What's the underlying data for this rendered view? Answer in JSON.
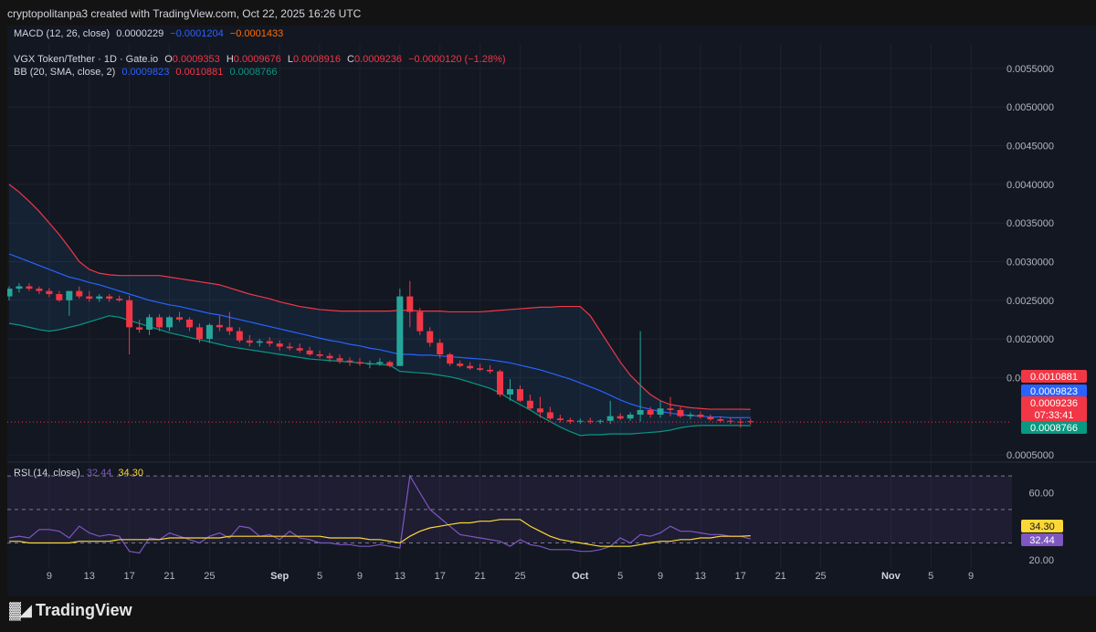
{
  "header": {
    "created_by": "cryptopolitanpa3 created with TradingView.com, Oct 22, 2025 16:26 UTC"
  },
  "macd_legend": {
    "label": "MACD (12, 26, close)",
    "v1": "0.0000229",
    "v2": "−0.0001204",
    "v3": "−0.0001433"
  },
  "symbol_legend": {
    "name": "VGX Token/Tether · 1D · Gate.io",
    "o_label": "O",
    "o": "0.0009353",
    "h_label": "H",
    "h": "0.0009676",
    "l_label": "L",
    "l": "0.0008916",
    "c_label": "C",
    "c": "0.0009236",
    "change": "−0.0000120 (−1.28%)"
  },
  "bb_legend": {
    "label": "BB (20, SMA, close, 2)",
    "basis": "0.0009823",
    "upper": "0.0010881",
    "lower": "0.0008766"
  },
  "rsi_legend": {
    "label": "RSI (14, close)",
    "rsi": "32.44",
    "ma": "34.30"
  },
  "price_tags": {
    "upper": "0.0010881",
    "basis": "0.0009823",
    "last": "0.0009236",
    "countdown": "07:33:41",
    "lower": "0.0008766"
  },
  "rsi_tags": {
    "ma": "34.30",
    "rsi": "32.44"
  },
  "footer": {
    "brand": "TradingView"
  },
  "colors": {
    "up": "#26a69a",
    "down": "#f23645",
    "bb_basis": "#2962ff",
    "bb_upper": "#f23645",
    "bb_lower": "#089981",
    "rsi": "#7e57c2",
    "rsi_ma": "#fdd835",
    "macd": "#2962ff",
    "signal": "#ff6d00"
  },
  "chart_data": [
    {
      "type": "candlestick",
      "title": "VGX Token/Tether · 1D · Gate.io",
      "y_axis_labels": [
        "0.0055000",
        "0.0050000",
        "0.0045000",
        "0.0040000",
        "0.0035000",
        "0.0030000",
        "0.0025000",
        "0.0020000",
        "0.0015000",
        "0.0005000"
      ],
      "y_axis_values": [
        0.0055,
        0.005,
        0.0045,
        0.004,
        0.0035,
        0.003,
        0.0025,
        0.002,
        0.0015,
        0.0005
      ],
      "ylim": [
        0.0005,
        0.0057
      ],
      "x_tick_labels": [
        "9",
        "13",
        "17",
        "21",
        "25",
        "Sep",
        "5",
        "9",
        "13",
        "17",
        "21",
        "25",
        "Oct",
        "5",
        "9",
        "13",
        "17",
        "21",
        "25",
        "Nov",
        "5",
        "9"
      ],
      "x_tick_dates": [
        "2025-08-09",
        "2025-08-13",
        "2025-08-17",
        "2025-08-21",
        "2025-08-25",
        "2025-09-01",
        "2025-09-05",
        "2025-09-09",
        "2025-09-13",
        "2025-09-17",
        "2025-09-21",
        "2025-09-25",
        "2025-10-01",
        "2025-10-05",
        "2025-10-09",
        "2025-10-13",
        "2025-10-17",
        "2025-10-21",
        "2025-10-25",
        "2025-11-01",
        "2025-11-05",
        "2025-11-09"
      ],
      "start_date": "2025-08-05",
      "candles": [
        [
          0.00255,
          0.00268,
          0.0025,
          0.00265
        ],
        [
          0.00265,
          0.00272,
          0.0026,
          0.00268
        ],
        [
          0.00268,
          0.00272,
          0.00262,
          0.00265
        ],
        [
          0.00265,
          0.00268,
          0.00258,
          0.00262
        ],
        [
          0.00262,
          0.00266,
          0.00254,
          0.00258
        ],
        [
          0.00258,
          0.00262,
          0.00248,
          0.0025
        ],
        [
          0.0025,
          0.0026,
          0.0023,
          0.00262
        ],
        [
          0.00262,
          0.00268,
          0.00252,
          0.00255
        ],
        [
          0.00255,
          0.00262,
          0.00248,
          0.00252
        ],
        [
          0.00252,
          0.00258,
          0.00248,
          0.00255
        ],
        [
          0.00255,
          0.00258,
          0.00248,
          0.00252
        ],
        [
          0.00252,
          0.00256,
          0.00248,
          0.0025
        ],
        [
          0.0025,
          0.00256,
          0.0018,
          0.00215
        ],
        [
          0.00215,
          0.00225,
          0.00208,
          0.00212
        ],
        [
          0.00212,
          0.00232,
          0.00205,
          0.00228
        ],
        [
          0.00228,
          0.00232,
          0.0021,
          0.00215
        ],
        [
          0.00215,
          0.0023,
          0.0021,
          0.00228
        ],
        [
          0.00228,
          0.00235,
          0.00222,
          0.00225
        ],
        [
          0.00225,
          0.00228,
          0.0021,
          0.00215
        ],
        [
          0.00215,
          0.0022,
          0.00195,
          0.002
        ],
        [
          0.002,
          0.0022,
          0.00195,
          0.00218
        ],
        [
          0.00218,
          0.0023,
          0.0021,
          0.00215
        ],
        [
          0.00215,
          0.00235,
          0.00205,
          0.0021
        ],
        [
          0.0021,
          0.00215,
          0.00195,
          0.00198
        ],
        [
          0.00198,
          0.00205,
          0.0019,
          0.00195
        ],
        [
          0.00195,
          0.002,
          0.0019,
          0.00197
        ],
        [
          0.00197,
          0.00202,
          0.0019,
          0.00194
        ],
        [
          0.00194,
          0.00198,
          0.00185,
          0.0019
        ],
        [
          0.0019,
          0.00195,
          0.00185,
          0.00188
        ],
        [
          0.00188,
          0.00194,
          0.00182,
          0.00185
        ],
        [
          0.00185,
          0.0019,
          0.00178,
          0.0018
        ],
        [
          0.0018,
          0.00185,
          0.00175,
          0.00178
        ],
        [
          0.00178,
          0.00182,
          0.0017,
          0.00175
        ],
        [
          0.00175,
          0.0018,
          0.00168,
          0.00172
        ],
        [
          0.00172,
          0.00176,
          0.00165,
          0.0017
        ],
        [
          0.0017,
          0.00175,
          0.00165,
          0.00168
        ],
        [
          0.00168,
          0.00172,
          0.00162,
          0.00168
        ],
        [
          0.00168,
          0.00175,
          0.00165,
          0.0017
        ],
        [
          0.0017,
          0.00172,
          0.00163,
          0.00165
        ],
        [
          0.00165,
          0.00265,
          0.00165,
          0.00255
        ],
        [
          0.00255,
          0.00275,
          0.00215,
          0.00235
        ],
        [
          0.00235,
          0.0024,
          0.00205,
          0.0021
        ],
        [
          0.0021,
          0.00215,
          0.0019,
          0.00195
        ],
        [
          0.00195,
          0.002,
          0.00175,
          0.0018
        ],
        [
          0.0018,
          0.00182,
          0.00165,
          0.00168
        ],
        [
          0.00168,
          0.00172,
          0.00163,
          0.00165
        ],
        [
          0.00165,
          0.0017,
          0.0016,
          0.00162
        ],
        [
          0.00162,
          0.00168,
          0.00158,
          0.0016
        ],
        [
          0.0016,
          0.00166,
          0.00155,
          0.00158
        ],
        [
          0.00158,
          0.0016,
          0.00125,
          0.00128
        ],
        [
          0.00128,
          0.00148,
          0.0012,
          0.00135
        ],
        [
          0.00135,
          0.0014,
          0.00118,
          0.0012
        ],
        [
          0.0012,
          0.00128,
          0.00108,
          0.0011
        ],
        [
          0.0011,
          0.00125,
          0.00098,
          0.00105
        ],
        [
          0.00105,
          0.00112,
          0.00095,
          0.00097
        ],
        [
          0.00097,
          0.00102,
          0.00092,
          0.00095
        ],
        [
          0.00095,
          0.00098,
          0.0009,
          0.00093
        ],
        [
          0.00093,
          0.00097,
          0.0009,
          0.00094
        ],
        [
          0.00094,
          0.00098,
          0.0009,
          0.00093
        ],
        [
          0.00093,
          0.00096,
          0.0009,
          0.00094
        ],
        [
          0.00094,
          0.0012,
          0.0009,
          0.001
        ],
        [
          0.001,
          0.00104,
          0.00095,
          0.00097
        ],
        [
          0.00097,
          0.00105,
          0.00094,
          0.00102
        ],
        [
          0.00102,
          0.0021,
          0.00093,
          0.00108
        ],
        [
          0.00108,
          0.00112,
          0.00098,
          0.00102
        ],
        [
          0.00102,
          0.0012,
          0.00098,
          0.0011
        ],
        [
          0.0011,
          0.00125,
          0.001,
          0.00108
        ],
        [
          0.00108,
          0.00112,
          0.00098,
          0.001
        ],
        [
          0.001,
          0.00105,
          0.00096,
          0.00102
        ],
        [
          0.00102,
          0.00106,
          0.00097,
          0.00099
        ],
        [
          0.00099,
          0.00102,
          0.00094,
          0.00096
        ],
        [
          0.00096,
          0.001,
          0.00092,
          0.00094
        ],
        [
          0.00094,
          0.00098,
          0.0009,
          0.00093
        ],
        [
          0.00093,
          0.00097,
          0.00085,
          0.00092
        ],
        [
          0.00093535,
          0.0009676,
          0.0008916,
          0.0009236
        ]
      ],
      "bb_upper": [
        0.004,
        0.0039,
        0.00378,
        0.00365,
        0.0035,
        0.00335,
        0.00318,
        0.003,
        0.0029,
        0.00285,
        0.00283,
        0.00282,
        0.00282,
        0.00282,
        0.00282,
        0.00282,
        0.0028,
        0.00278,
        0.00276,
        0.00274,
        0.00272,
        0.0027,
        0.00266,
        0.00262,
        0.00258,
        0.00255,
        0.00252,
        0.00248,
        0.00245,
        0.00242,
        0.0024,
        0.00238,
        0.00237,
        0.00236,
        0.00236,
        0.00236,
        0.00236,
        0.00236,
        0.00236,
        0.00237,
        0.00237,
        0.00236,
        0.00236,
        0.00236,
        0.00235,
        0.00235,
        0.00235,
        0.00235,
        0.00236,
        0.00237,
        0.00238,
        0.00239,
        0.0024,
        0.00241,
        0.00241,
        0.00242,
        0.00242,
        0.00242,
        0.0023,
        0.0021,
        0.0019,
        0.0017,
        0.00153,
        0.0014,
        0.00128,
        0.0012,
        0.00115,
        0.00113,
        0.00111,
        0.0011,
        0.00109,
        0.00109,
        0.00109,
        0.00109,
        0.0010881
      ],
      "bb_basis": [
        0.0031,
        0.00305,
        0.003,
        0.00295,
        0.0029,
        0.00285,
        0.0028,
        0.00277,
        0.00273,
        0.0027,
        0.00266,
        0.00262,
        0.00258,
        0.00254,
        0.0025,
        0.00247,
        0.00244,
        0.00242,
        0.00239,
        0.00236,
        0.00233,
        0.00231,
        0.00228,
        0.00225,
        0.00222,
        0.00219,
        0.00216,
        0.00213,
        0.0021,
        0.00207,
        0.00204,
        0.00201,
        0.00198,
        0.00196,
        0.00193,
        0.00191,
        0.00188,
        0.00186,
        0.00183,
        0.0018,
        0.0018,
        0.00179,
        0.00179,
        0.00178,
        0.00177,
        0.00176,
        0.00175,
        0.00174,
        0.00173,
        0.00171,
        0.00169,
        0.00166,
        0.00163,
        0.0016,
        0.00156,
        0.00152,
        0.00148,
        0.00143,
        0.00138,
        0.00133,
        0.00127,
        0.00121,
        0.00116,
        0.00112,
        0.00109,
        0.00106,
        0.00104,
        0.00102,
        0.00101,
        0.001,
        0.00099,
        0.00099,
        0.00098,
        0.00098,
        0.0009823
      ],
      "bb_lower": [
        0.0022,
        0.00218,
        0.00215,
        0.00212,
        0.0021,
        0.00212,
        0.00215,
        0.00218,
        0.00222,
        0.00226,
        0.0023,
        0.00228,
        0.00224,
        0.0022,
        0.00216,
        0.00212,
        0.00208,
        0.00205,
        0.00202,
        0.00199,
        0.00196,
        0.00193,
        0.0019,
        0.00188,
        0.00186,
        0.00184,
        0.00182,
        0.0018,
        0.00178,
        0.00176,
        0.00174,
        0.00173,
        0.00172,
        0.00171,
        0.0017,
        0.00169,
        0.00168,
        0.00167,
        0.00166,
        0.00158,
        0.00157,
        0.00156,
        0.00155,
        0.00153,
        0.00151,
        0.00148,
        0.00144,
        0.0014,
        0.00136,
        0.0013,
        0.00122,
        0.00115,
        0.00108,
        0.001,
        0.00093,
        0.00086,
        0.0008,
        0.00075,
        0.00076,
        0.00076,
        0.00077,
        0.00077,
        0.00077,
        0.00078,
        0.00079,
        0.0008,
        0.00082,
        0.00085,
        0.00087,
        0.00088,
        0.00088,
        0.00088,
        0.00088,
        0.00088,
        0.0008766
      ]
    },
    {
      "type": "line",
      "title": "RSI (14, close)",
      "y_axis_labels": [
        "60.00",
        "20.00"
      ],
      "y_axis_values": [
        60,
        20
      ],
      "ylim": [
        15,
        75
      ],
      "bands": [
        70,
        50,
        30
      ],
      "series": [
        {
          "name": "RSI",
          "values": [
            33,
            34,
            33,
            38,
            38,
            37,
            33,
            40,
            36,
            34,
            35,
            34,
            25,
            24,
            33,
            32,
            36,
            34,
            32,
            30,
            34,
            36,
            33,
            40,
            39,
            34,
            35,
            32,
            37,
            33,
            32,
            30,
            30,
            29,
            29,
            28,
            28,
            29,
            28,
            27,
            70,
            60,
            50,
            45,
            40,
            35,
            34,
            33,
            32,
            31,
            28,
            32,
            29,
            28,
            26,
            26,
            26,
            25,
            25,
            26,
            28,
            33,
            30,
            35,
            34,
            36,
            40,
            37,
            37,
            36,
            35,
            35,
            34,
            34,
            32.44
          ]
        },
        {
          "name": "MA",
          "values": [
            31,
            31,
            30,
            30,
            30,
            30,
            30,
            31,
            31,
            31,
            31,
            32,
            32,
            32,
            32,
            32,
            33,
            33,
            33,
            33,
            33,
            33,
            34,
            34,
            34,
            34,
            34,
            34,
            34,
            34,
            34,
            34,
            33,
            33,
            33,
            33,
            32,
            32,
            31,
            30,
            34,
            37,
            39,
            40,
            41,
            42,
            42,
            43,
            43,
            44,
            44,
            44,
            40,
            37,
            34,
            32,
            31,
            30,
            29,
            28,
            28,
            28,
            28,
            29,
            30,
            31,
            31,
            32,
            32,
            33,
            33,
            34,
            34,
            34,
            34.3
          ]
        }
      ]
    }
  ]
}
